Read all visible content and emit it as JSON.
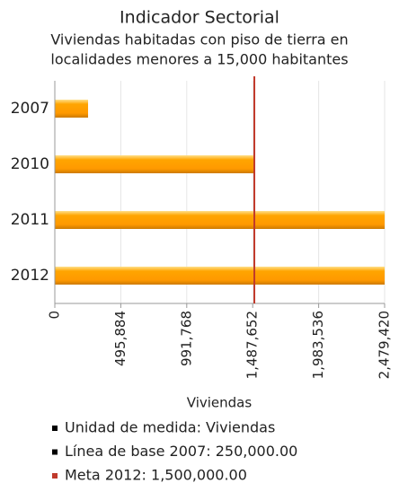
{
  "chart_data": {
    "type": "barh",
    "title": "Indicador Sectorial",
    "subtitle": [
      "Viviendas habitadas con piso de tierra en",
      "localidades menores a 15,000 habitantes"
    ],
    "x_label": "Viviendas",
    "categories": [
      "2007",
      "2010",
      "2011",
      "2012"
    ],
    "values": [
      250000,
      1500000,
      2479420,
      2479420
    ],
    "color": "#ffa500",
    "xlim": [
      0,
      2479420
    ],
    "xticks": [
      0,
      {
        "value": 495884,
        "label": "495,884"
      },
      {
        "value": 991768,
        "label": "991,768"
      },
      {
        "value": 1487652,
        "label": "1,487,652"
      },
      {
        "value": 1983536,
        "label": "1,983,536"
      },
      {
        "value": 2479420,
        "label": "2,479,420"
      }
    ],
    "grid": true,
    "reference_line": {
      "value": 1500000,
      "color": "#c0392b"
    },
    "legend": [
      {
        "text": "Unidad de medida: Viviendas",
        "color": "#000000"
      },
      {
        "text": "Línea de base 2007: 250,000.00",
        "color": "#000000"
      },
      {
        "text": "Meta 2012: 1,500,000.00",
        "color": "#c0392b"
      }
    ]
  }
}
